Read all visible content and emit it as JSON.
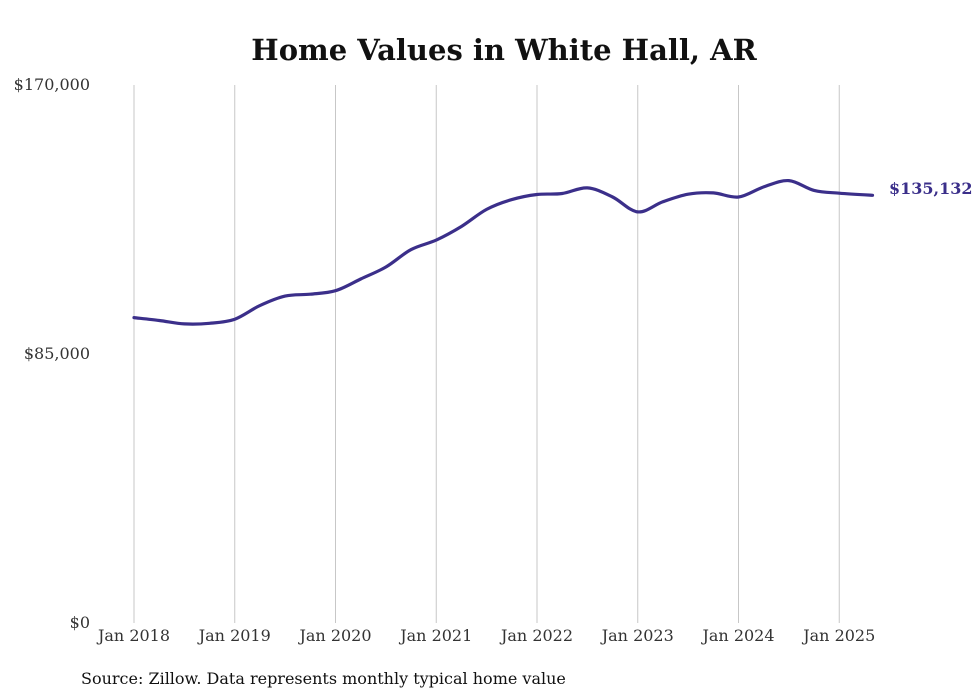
{
  "chart_data": {
    "type": "line",
    "title": "Home Values in White Hall, AR",
    "source_note": "Source: Zillow. Data represents monthly typical home value",
    "ylim": [
      0,
      170000
    ],
    "y_ticks": [
      {
        "value": 0,
        "label": "$0"
      },
      {
        "value": 85000,
        "label": "$85,000"
      },
      {
        "value": 170000,
        "label": "$170,000"
      }
    ],
    "x_ticks": [
      {
        "value": 2018,
        "label": "Jan 2018"
      },
      {
        "value": 2019,
        "label": "Jan 2019"
      },
      {
        "value": 2020,
        "label": "Jan 2020"
      },
      {
        "value": 2021,
        "label": "Jan 2021"
      },
      {
        "value": 2022,
        "label": "Jan 2022"
      },
      {
        "value": 2023,
        "label": "Jan 2023"
      },
      {
        "value": 2024,
        "label": "Jan 2024"
      },
      {
        "value": 2025,
        "label": "Jan 2025"
      }
    ],
    "xlim": [
      2018,
      2025.5
    ],
    "grid": "vertical",
    "line_color": "#3b2f8a",
    "end_label": "$135,132",
    "series": [
      {
        "points": [
          [
            2018.0,
            96500
          ],
          [
            2018.25,
            95600
          ],
          [
            2018.5,
            94500
          ],
          [
            2018.75,
            94700
          ],
          [
            2019.0,
            96000
          ],
          [
            2019.25,
            100300
          ],
          [
            2019.5,
            103300
          ],
          [
            2019.75,
            103900
          ],
          [
            2020.0,
            105000
          ],
          [
            2020.25,
            108700
          ],
          [
            2020.5,
            112500
          ],
          [
            2020.75,
            118000
          ],
          [
            2021.0,
            121000
          ],
          [
            2021.25,
            125300
          ],
          [
            2021.5,
            130700
          ],
          [
            2021.75,
            133800
          ],
          [
            2022.0,
            135400
          ],
          [
            2022.25,
            135700
          ],
          [
            2022.5,
            137500
          ],
          [
            2022.75,
            134600
          ],
          [
            2023.0,
            129900
          ],
          [
            2023.25,
            133100
          ],
          [
            2023.5,
            135500
          ],
          [
            2023.75,
            135900
          ],
          [
            2024.0,
            134600
          ],
          [
            2024.25,
            137800
          ],
          [
            2024.5,
            139800
          ],
          [
            2024.75,
            136700
          ],
          [
            2025.0,
            135800
          ],
          [
            2025.33,
            135132
          ]
        ]
      }
    ]
  }
}
